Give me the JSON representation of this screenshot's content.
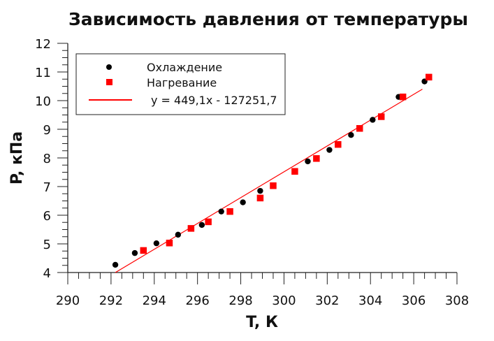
{
  "chart_data": {
    "type": "scatter",
    "title": "Зависимость давления от температуры",
    "xlabel": "T, К",
    "ylabel": "P, кПа",
    "xlim": [
      290,
      308
    ],
    "ylim": [
      4,
      12
    ],
    "x_ticks": [
      "290",
      "292",
      "294",
      "296",
      "298",
      "300",
      "302",
      "304",
      "306",
      "308"
    ],
    "y_ticks": [
      "4",
      "5",
      "6",
      "7",
      "8",
      "9",
      "10",
      "11",
      "12"
    ],
    "grid": false,
    "legend_position": "top-left",
    "series": [
      {
        "name": "Охлаждение",
        "marker": "circle",
        "color": "#000000",
        "x": [
          292.2,
          293.1,
          294.1,
          295.1,
          296.2,
          297.1,
          298.1,
          298.9,
          301.1,
          302.1,
          303.1,
          304.1,
          305.3,
          306.5
        ],
        "y": [
          4.27,
          4.68,
          5.02,
          5.32,
          5.66,
          6.13,
          6.45,
          6.85,
          7.88,
          8.28,
          8.8,
          9.33,
          10.13,
          10.67
        ]
      },
      {
        "name": "Нагревание",
        "marker": "square",
        "color": "#ff0000",
        "x": [
          293.5,
          294.7,
          295.7,
          296.5,
          297.5,
          298.9,
          299.5,
          300.5,
          301.5,
          302.5,
          303.5,
          304.5,
          305.5,
          306.7
        ],
        "y": [
          4.77,
          5.03,
          5.54,
          5.77,
          6.13,
          6.6,
          7.03,
          7.53,
          7.98,
          8.47,
          9.03,
          9.44,
          10.13,
          10.82
        ]
      },
      {
        "name": "y = 449,1x - 127251,7",
        "type": "line",
        "color": "#ff0000",
        "x": [
          292.2,
          306.4
        ],
        "y": [
          4.0,
          10.4
        ]
      }
    ]
  }
}
